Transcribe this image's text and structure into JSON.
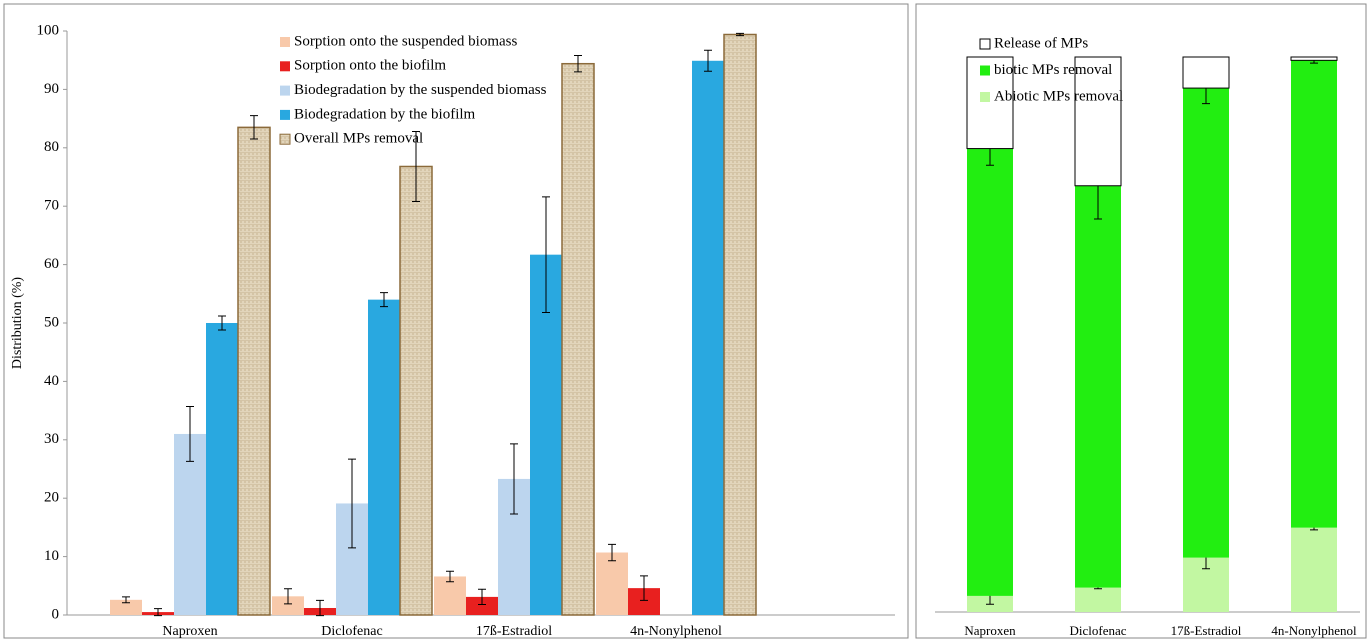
{
  "chart_data": [
    {
      "type": "bar",
      "stacked": false,
      "y_label": "Distribution (%)",
      "categories": [
        "Naproxen",
        "Diclofenac",
        "17ß-Estradiol",
        "4n-Nonylphenol"
      ],
      "ylim": [
        0,
        100
      ],
      "yticks": [
        0,
        10,
        20,
        30,
        40,
        50,
        60,
        70,
        80,
        90,
        100
      ],
      "grid": false,
      "series": [
        {
          "name": "Sorption onto the suspended biomass",
          "color": "#f8c9aa",
          "values": [
            2.6,
            3.2,
            6.6,
            10.7
          ],
          "errors": [
            0.5,
            1.3,
            0.9,
            1.4
          ]
        },
        {
          "name": "Sorption onto the biofilm",
          "color": "#e8201f",
          "values": [
            0.5,
            1.2,
            3.1,
            4.6
          ],
          "errors": [
            0.6,
            1.3,
            1.3,
            2.1
          ]
        },
        {
          "name": "Biodegradation by the suspended biomass",
          "color": "#bcd5ee",
          "values": [
            31,
            19.1,
            23.3,
            null
          ],
          "errors": [
            4.7,
            7.6,
            6,
            null
          ]
        },
        {
          "name": "Biodegradation by the biofilm",
          "color": "#29a8e0",
          "values": [
            50,
            54,
            61.7,
            94.9
          ],
          "errors": [
            1.2,
            1.2,
            9.9,
            1.8
          ]
        },
        {
          "name": "Overall MPs removal",
          "color": "#d8c8a8",
          "hatched": true,
          "values": [
            83.5,
            76.8,
            94.4,
            99.4
          ],
          "errors": [
            2,
            6,
            1.4,
            0.2
          ]
        }
      ]
    },
    {
      "type": "bar",
      "stacked": true,
      "categories": [
        "Naproxen",
        "Diclofenac",
        "17ß-Estradiol",
        "4n-Nonylphenol"
      ],
      "ylim": [
        0,
        100
      ],
      "series": [
        {
          "name": "Abiotic MPs removal",
          "color": "#c2f7a2",
          "values": [
            2.9,
            4.4,
            9.8,
            15.2
          ],
          "errors": [
            1.5,
            0.2,
            2,
            0.4
          ]
        },
        {
          "name": "biotic MPs removal",
          "color": "#22ee11",
          "values": [
            80.6,
            72.4,
            84.6,
            84.2
          ],
          "errors": [
            3,
            6,
            2.8,
            0.5
          ]
        },
        {
          "name": "Release of MPs",
          "color": "#ffffff",
          "values": [
            16.5,
            23.2,
            5.6,
            0.6
          ]
        }
      ]
    }
  ]
}
